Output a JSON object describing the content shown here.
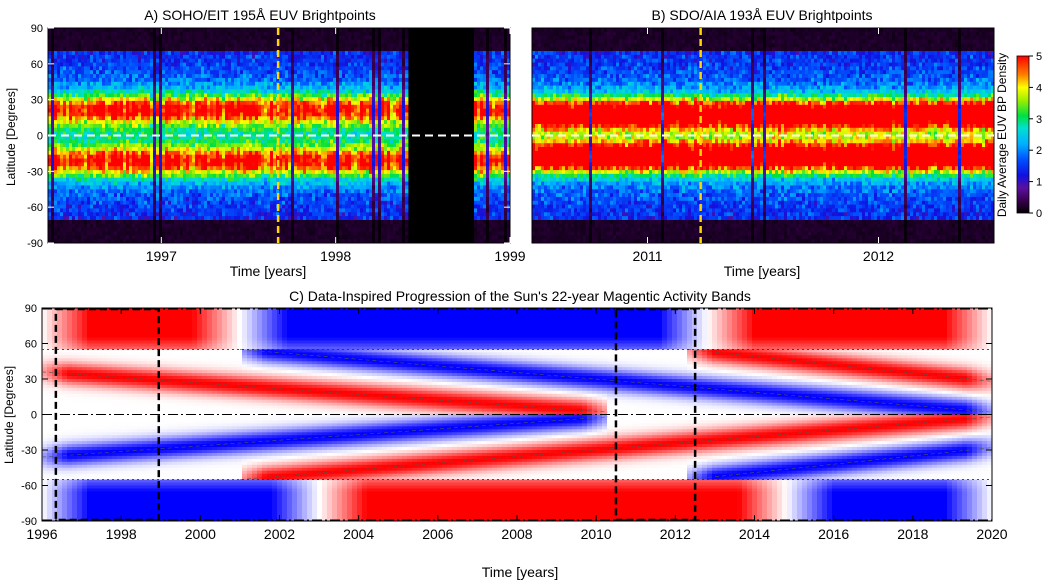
{
  "chart_data": [
    {
      "id": "A",
      "type": "heatmap",
      "title": "A) SOHO/EIT 195Å EUV Brightpoints",
      "xlabel": "Time [years]",
      "ylabel": "Latitude [Degrees]",
      "xlim": [
        1996.35,
        1999.0
      ],
      "ylim": [
        -90,
        90
      ],
      "x_ticks": [
        1997,
        1998,
        1999
      ],
      "x_tick_labels": [
        "1997",
        "1998",
        "1999"
      ],
      "y_ticks": [
        90,
        60,
        30,
        0,
        -30,
        -60,
        -90
      ],
      "y_tick_labels": [
        "90",
        "60",
        "30",
        "0",
        "-30",
        "-60",
        "-90"
      ],
      "data_gap": [
        1998.42,
        1998.8
      ],
      "band_centers_deg": [
        22,
        -22
      ],
      "equator_line_deg": 0,
      "marker_year": 1997.67,
      "marker_color": "#ffd700"
    },
    {
      "id": "B",
      "type": "heatmap",
      "title": "B) SDO/AIA 193Å EUV Brightpoints",
      "xlabel": "Time [years]",
      "ylabel": "",
      "xlim": [
        2010.5,
        2012.5
      ],
      "ylim": [
        -90,
        90
      ],
      "x_ticks": [
        2011,
        2012
      ],
      "x_tick_labels": [
        "2011",
        "2012"
      ],
      "band_centers_deg": [
        18,
        -18
      ],
      "equator_line_deg": 0,
      "marker_year": 2011.23,
      "marker_color": "#ffd700"
    },
    {
      "id": "colorbar",
      "type": "colorbar",
      "label": "Daily Average EUV BP Density",
      "range": [
        0,
        5
      ],
      "ticks": [
        0,
        1,
        2,
        3,
        4,
        5
      ],
      "tick_labels": [
        "0",
        "1",
        "2",
        "3",
        "4",
        "5"
      ]
    },
    {
      "id": "C",
      "type": "heatmap",
      "title": "C) Data-Inspired Progression of the Sun's 22-year Magentic Activity Bands",
      "xlabel": "Time [years]",
      "ylabel": "Latitude [Degrees]",
      "xlim": [
        1996,
        2020
      ],
      "ylim": [
        -90,
        90
      ],
      "x_ticks": [
        1996,
        1998,
        2000,
        2002,
        2004,
        2006,
        2008,
        2010,
        2012,
        2014,
        2016,
        2018,
        2020
      ],
      "x_tick_labels": [
        "1996",
        "1998",
        "2000",
        "2002",
        "2004",
        "2006",
        "2008",
        "2010",
        "2012",
        "2014",
        "2016",
        "2018",
        "2020"
      ],
      "y_ticks": [
        90,
        60,
        30,
        0,
        -30,
        -60,
        -90
      ],
      "y_tick_labels": [
        "90",
        "60",
        "30",
        "0",
        "-30",
        "-60",
        "-90"
      ],
      "colors": {
        "positive": "#ff0000",
        "negative": "#0000ff",
        "neutral": "#ffffff"
      },
      "polar_boundary_deg": 55,
      "bands": [
        {
          "hemisphere": "north",
          "start_year": 1996,
          "start_lat": 36,
          "end_year": 2010.3,
          "end_lat": 2,
          "polarity": "positive"
        },
        {
          "hemisphere": "north",
          "start_year": 2001,
          "start_lat": 55,
          "end_year": 2020,
          "end_lat": 2,
          "polarity": "negative"
        },
        {
          "hemisphere": "north",
          "start_year": 2012.3,
          "start_lat": 55,
          "end_year": 2020,
          "end_lat": 28,
          "polarity": "positive"
        },
        {
          "hemisphere": "south",
          "start_year": 1996,
          "start_lat": -36,
          "end_year": 2010.3,
          "end_lat": -2,
          "polarity": "negative"
        },
        {
          "hemisphere": "south",
          "start_year": 2001,
          "start_lat": -55,
          "end_year": 2020,
          "end_lat": -2,
          "polarity": "positive"
        },
        {
          "hemisphere": "south",
          "start_year": 2012.3,
          "start_lat": -55,
          "end_year": 2020,
          "end_lat": -28,
          "polarity": "negative"
        }
      ],
      "polar_caps": [
        {
          "region": "north",
          "from_year": 1996,
          "to_year": 2001,
          "polarity": "positive"
        },
        {
          "region": "north",
          "from_year": 2001,
          "to_year": 2012.8,
          "polarity": "negative"
        },
        {
          "region": "north",
          "from_year": 2012.8,
          "to_year": 2020,
          "polarity": "positive"
        },
        {
          "region": "south",
          "from_year": 1996,
          "to_year": 2003,
          "polarity": "negative"
        },
        {
          "region": "south",
          "from_year": 2003,
          "to_year": 2014.8,
          "polarity": "positive"
        },
        {
          "region": "south",
          "from_year": 2014.8,
          "to_year": 2020,
          "polarity": "negative"
        }
      ],
      "highlight_boxes": [
        {
          "from_year": 1996.35,
          "to_year": 1998.95
        },
        {
          "from_year": 2010.5,
          "to_year": 2012.5
        }
      ]
    }
  ]
}
